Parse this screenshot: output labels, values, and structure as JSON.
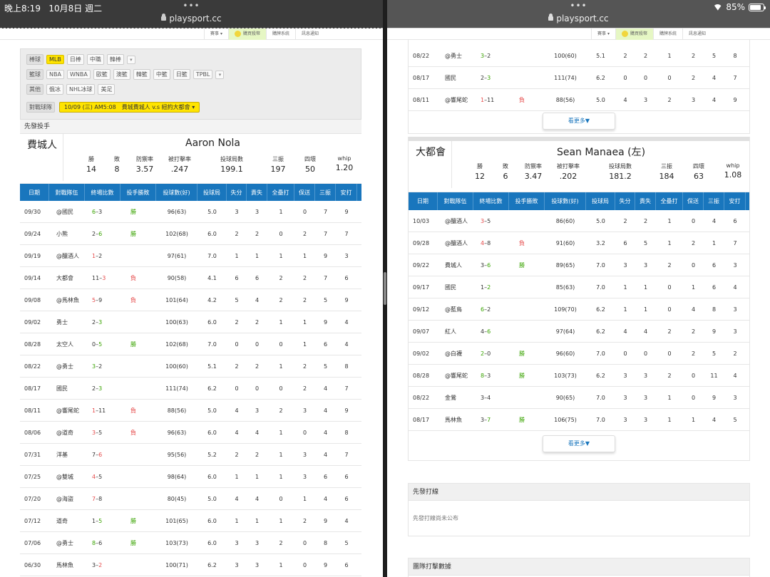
{
  "left": {
    "status": {
      "time": "晚上8:19",
      "date": "10月8日 週二"
    },
    "url": "playsport.cc",
    "toolbar": [
      "賽事",
      "購買殺幣",
      "購牌系統",
      "訊息通知"
    ],
    "filters": {
      "baseball": {
        "label": "棒球",
        "items": [
          "MLB",
          "日棒",
          "中職",
          "韓棒"
        ]
      },
      "basketball": {
        "label": "籃球",
        "items": [
          "NBA",
          "WNBA",
          "歐籃",
          "澳籃",
          "韓籃",
          "中籃",
          "日籃",
          "TPBL"
        ]
      },
      "other": {
        "label": "其他",
        "items": [
          "俄冰",
          "NHL冰球",
          "美足"
        ]
      },
      "game": {
        "label": "對戰球隊",
        "value": "10/09 (三) AM5:08　費城費城人 v.s 紐約大都會"
      }
    },
    "section": "先發投手",
    "pitcher": {
      "team": "費城人",
      "name": "Aaron Nola",
      "stats": [
        {
          "k": "勝",
          "v": "14"
        },
        {
          "k": "敗",
          "v": "8"
        },
        {
          "k": "防禦率",
          "v": "3.57"
        },
        {
          "k": "被打擊率",
          "v": ".247"
        },
        {
          "k": "投球局數",
          "v": "199.1"
        },
        {
          "k": "三振",
          "v": "197"
        },
        {
          "k": "四壞",
          "v": "50"
        },
        {
          "k": "whip",
          "v": "1.20"
        }
      ]
    },
    "table_head": [
      "日期",
      "對戰隊伍",
      "終場比數",
      "投手勝敗",
      "投球數(好)",
      "投球局",
      "失分",
      "責失",
      "全壘打",
      "保送",
      "三振",
      "安打"
    ],
    "rows": [
      [
        "09/30",
        "@國民",
        "6",
        "3",
        "W",
        "勝",
        "96(63)",
        "5.0",
        "3",
        "3",
        "1",
        "0",
        "7",
        "9"
      ],
      [
        "09/24",
        "小熊",
        "2",
        "6",
        "R",
        "勝",
        "102(68)",
        "6.0",
        "2",
        "2",
        "0",
        "2",
        "7",
        "7"
      ],
      [
        "09/19",
        "@釀酒人",
        "1",
        "2",
        "L",
        "",
        "97(61)",
        "7.0",
        "1",
        "1",
        "1",
        "1",
        "9",
        "3"
      ],
      [
        "09/14",
        "大都會",
        "11",
        "3",
        "R",
        "負",
        "90(58)",
        "4.1",
        "6",
        "6",
        "2",
        "2",
        "7",
        "6"
      ],
      [
        "09/08",
        "@馬林魚",
        "5",
        "9",
        "L",
        "負",
        "101(64)",
        "4.2",
        "5",
        "4",
        "2",
        "2",
        "5",
        "9"
      ],
      [
        "09/02",
        "勇士",
        "2",
        "3",
        "R",
        "",
        "100(63)",
        "6.0",
        "2",
        "2",
        "1",
        "1",
        "9",
        "4"
      ],
      [
        "08/28",
        "太空人",
        "0",
        "5",
        "R",
        "勝",
        "102(68)",
        "7.0",
        "0",
        "0",
        "0",
        "1",
        "6",
        "4"
      ],
      [
        "08/22",
        "@勇士",
        "3",
        "2",
        "W",
        "",
        "100(60)",
        "5.1",
        "2",
        "2",
        "1",
        "2",
        "5",
        "8"
      ],
      [
        "08/17",
        "國民",
        "2",
        "3",
        "R",
        "",
        "111(74)",
        "6.2",
        "0",
        "0",
        "0",
        "2",
        "4",
        "7"
      ],
      [
        "08/11",
        "@響尾蛇",
        "1",
        "11",
        "L",
        "負",
        "88(56)",
        "5.0",
        "4",
        "3",
        "2",
        "3",
        "4",
        "9"
      ],
      [
        "08/06",
        "@道奇",
        "3",
        "5",
        "L",
        "負",
        "96(63)",
        "6.0",
        "4",
        "4",
        "1",
        "0",
        "4",
        "8"
      ],
      [
        "07/31",
        "洋基",
        "7",
        "6",
        "R",
        "",
        "95(56)",
        "5.2",
        "2",
        "2",
        "1",
        "3",
        "4",
        "7"
      ],
      [
        "07/25",
        "@雙城",
        "4",
        "5",
        "L",
        "",
        "98(64)",
        "6.0",
        "1",
        "1",
        "1",
        "3",
        "6",
        "6"
      ],
      [
        "07/20",
        "@海盜",
        "7",
        "8",
        "L",
        "",
        "80(45)",
        "5.0",
        "4",
        "4",
        "0",
        "1",
        "4",
        "6"
      ],
      [
        "07/12",
        "道奇",
        "1",
        "5",
        "R",
        "勝",
        "101(65)",
        "6.0",
        "1",
        "1",
        "1",
        "2",
        "9",
        "4"
      ],
      [
        "07/06",
        "@勇士",
        "8",
        "6",
        "W",
        "勝",
        "103(73)",
        "6.0",
        "3",
        "3",
        "2",
        "0",
        "8",
        "5"
      ],
      [
        "06/30",
        "馬林魚",
        "3",
        "2",
        "R",
        "",
        "100(71)",
        "6.2",
        "3",
        "3",
        "1",
        "0",
        "9",
        "6"
      ]
    ]
  },
  "right": {
    "status": {
      "battery": "85%"
    },
    "url": "playsport.cc",
    "toolbar": [
      "賽事",
      "購買殺幣",
      "購牌系統",
      "訊息通知"
    ],
    "prev_rows": [
      [
        "08/22",
        "@勇士",
        "3",
        "2",
        "W",
        "",
        "100(60)",
        "5.1",
        "2",
        "2",
        "1",
        "2",
        "5",
        "8"
      ],
      [
        "08/17",
        "國民",
        "2",
        "3",
        "R",
        "",
        "111(74)",
        "6.2",
        "0",
        "0",
        "0",
        "2",
        "4",
        "7"
      ],
      [
        "08/11",
        "@響尾蛇",
        "1",
        "11",
        "L",
        "負",
        "88(56)",
        "5.0",
        "4",
        "3",
        "2",
        "3",
        "4",
        "9"
      ]
    ],
    "more": "看更多▼",
    "pitcher": {
      "team": "大都會",
      "name": "Sean Manaea (左)",
      "stats": [
        {
          "k": "勝",
          "v": "12"
        },
        {
          "k": "敗",
          "v": "6"
        },
        {
          "k": "防禦率",
          "v": "3.47"
        },
        {
          "k": "被打擊率",
          "v": ".202"
        },
        {
          "k": "投球局數",
          "v": "181.2"
        },
        {
          "k": "三振",
          "v": "184"
        },
        {
          "k": "四壞",
          "v": "63"
        },
        {
          "k": "whip",
          "v": "1.08"
        }
      ]
    },
    "table_head": [
      "日期",
      "對戰隊伍",
      "終場比數",
      "投手勝敗",
      "投球數(好)",
      "投球局",
      "失分",
      "責失",
      "全壘打",
      "保送",
      "三振",
      "安打"
    ],
    "rows": [
      [
        "10/03",
        "@釀酒人",
        "3",
        "5",
        "L",
        "",
        "86(60)",
        "5.0",
        "2",
        "2",
        "1",
        "0",
        "4",
        "6"
      ],
      [
        "09/28",
        "@釀酒人",
        "4",
        "8",
        "L",
        "負",
        "91(60)",
        "3.2",
        "6",
        "5",
        "1",
        "2",
        "1",
        "7"
      ],
      [
        "09/22",
        "費城人",
        "3",
        "6",
        "R",
        "勝",
        "89(65)",
        "7.0",
        "3",
        "3",
        "2",
        "0",
        "6",
        "3"
      ],
      [
        "09/17",
        "國民",
        "1",
        "2",
        "R",
        "",
        "85(63)",
        "7.0",
        "1",
        "1",
        "0",
        "1",
        "6",
        "4"
      ],
      [
        "09/12",
        "@藍鳥",
        "6",
        "2",
        "W",
        "",
        "109(70)",
        "6.2",
        "1",
        "1",
        "0",
        "4",
        "8",
        "3"
      ],
      [
        "09/07",
        "紅人",
        "4",
        "6",
        "R",
        "",
        "97(64)",
        "6.2",
        "4",
        "4",
        "2",
        "2",
        "9",
        "3"
      ],
      [
        "09/02",
        "@白襪",
        "2",
        "0",
        "W",
        "勝",
        "96(60)",
        "7.0",
        "0",
        "0",
        "0",
        "2",
        "5",
        "2"
      ],
      [
        "08/28",
        "@響尾蛇",
        "8",
        "3",
        "W",
        "勝",
        "103(73)",
        "6.2",
        "3",
        "3",
        "2",
        "0",
        "11",
        "4"
      ],
      [
        "08/22",
        "金鶯",
        "3",
        "4",
        "N",
        "",
        "90(65)",
        "7.0",
        "3",
        "3",
        "1",
        "0",
        "9",
        "3"
      ],
      [
        "08/17",
        "馬林魚",
        "3",
        "7",
        "R",
        "勝",
        "106(75)",
        "7.0",
        "3",
        "3",
        "1",
        "1",
        "4",
        "5"
      ]
    ],
    "lineup": {
      "title": "先發打線",
      "body": "先發打線尚未公布"
    },
    "team_batting": {
      "title": "團隊打擊數據"
    }
  }
}
